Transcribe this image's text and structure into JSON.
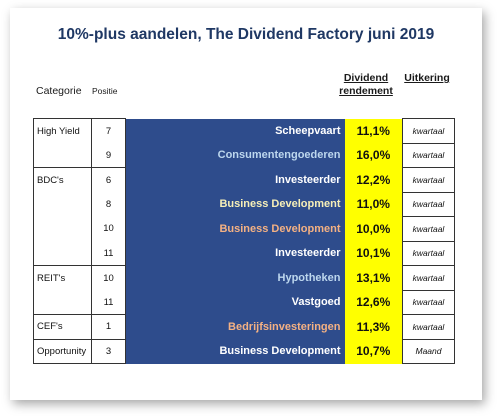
{
  "title": "10%-plus aandelen, The Dividend Factory juni 2019",
  "headers": {
    "categorie": "Categorie",
    "positie": "Positie",
    "dividend_line1": "Dividend",
    "dividend_line2": "rendement",
    "uitkering": "Uitkering"
  },
  "colors": {
    "title": "#1f3864",
    "name_bg": "#2e4c8c",
    "value_bg": "#ffff00",
    "name_white": "#ffffff",
    "name_cream": "#f6efb8",
    "name_salmon": "#f4b183",
    "name_lightblue": "#bdd7ee"
  },
  "rows": [
    {
      "categorie": "High Yield",
      "positie": "7",
      "naam": "Scheepvaart",
      "naam_color": "#ffffff",
      "rendement": "11,1%",
      "uitkering": "kwartaal"
    },
    {
      "categorie": "",
      "positie": "9",
      "naam": "Consumentengoederen",
      "naam_color": "#bdd7ee",
      "rendement": "16,0%",
      "uitkering": "kwartaal"
    },
    {
      "categorie": "BDC's",
      "positie": "6",
      "naam": "Investeerder",
      "naam_color": "#ffffff",
      "rendement": "12,2%",
      "uitkering": "kwartaal"
    },
    {
      "categorie": "",
      "positie": "8",
      "naam": "Business Development",
      "naam_color": "#f6efb8",
      "rendement": "11,0%",
      "uitkering": "kwartaal"
    },
    {
      "categorie": "",
      "positie": "10",
      "naam": "Business Development",
      "naam_color": "#f4b183",
      "rendement": "10,0%",
      "uitkering": "kwartaal"
    },
    {
      "categorie": "",
      "positie": "11",
      "naam": "Investeerder",
      "naam_color": "#ffffff",
      "rendement": "10,1%",
      "uitkering": "kwartaal"
    },
    {
      "categorie": "REIT's",
      "positie": "10",
      "naam": "Hypotheken",
      "naam_color": "#bdd7ee",
      "rendement": "13,1%",
      "uitkering": "kwartaal"
    },
    {
      "categorie": "",
      "positie": "11",
      "naam": "Vastgoed",
      "naam_color": "#ffffff",
      "rendement": "12,6%",
      "uitkering": "kwartaal"
    },
    {
      "categorie": "CEF's",
      "positie": "1",
      "naam": "Bedrijfsinvesteringen",
      "naam_color": "#f4b183",
      "rendement": "11,3%",
      "uitkering": "kwartaal"
    },
    {
      "categorie": "Opportunity",
      "positie": "3",
      "naam": "Business Development",
      "naam_color": "#ffffff",
      "rendement": "10,7%",
      "uitkering": "Maand"
    }
  ]
}
